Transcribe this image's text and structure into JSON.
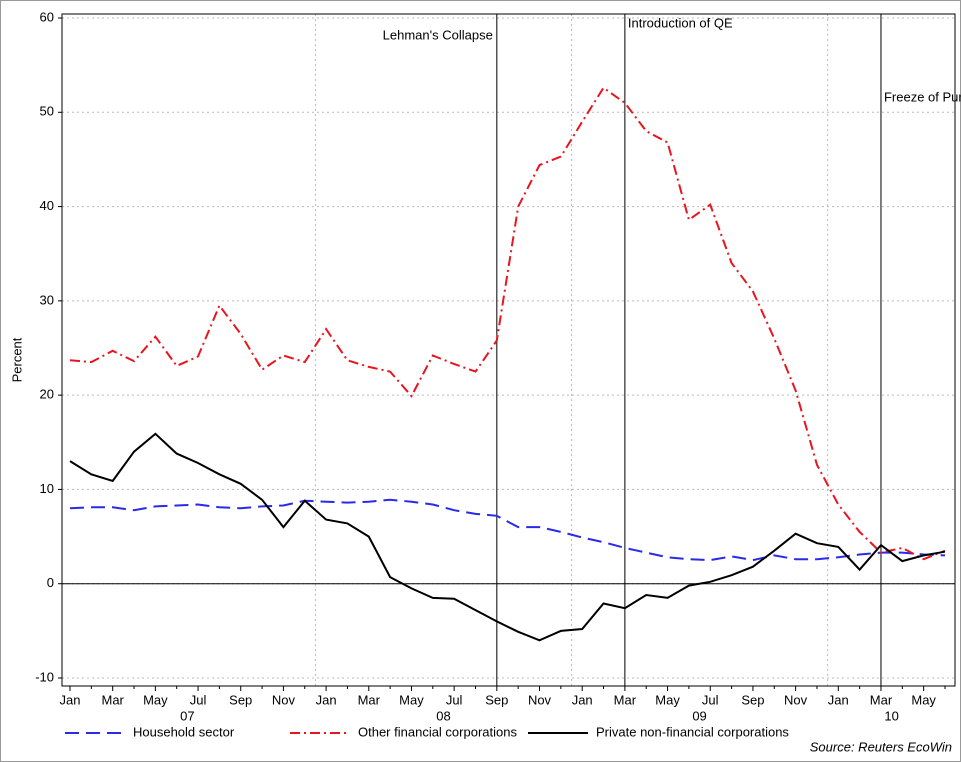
{
  "chart_data": {
    "type": "line",
    "y_label": "Percent",
    "source": "Source: Reuters EcoWin",
    "categories": [
      "Jan",
      null,
      "Mar",
      null,
      "May",
      null,
      "Jul",
      null,
      "Sep",
      null,
      "Nov",
      null,
      "Jan",
      null,
      "Mar",
      null,
      "May",
      null,
      "Jul",
      null,
      "Sep",
      null,
      "Nov",
      null,
      "Jan",
      null,
      "Mar",
      null,
      "May",
      null,
      "Jul",
      null,
      "Sep",
      null,
      "Nov",
      null,
      "Jan",
      null,
      "Mar",
      null,
      "May",
      null
    ],
    "year_labels": [
      "07",
      "08",
      "09",
      "10"
    ],
    "ylim": [
      -10,
      60
    ],
    "yticks": [
      -10,
      0,
      10,
      20,
      30,
      40,
      50,
      60
    ],
    "grid": true,
    "events": [
      {
        "label": "Lehman's Collapse",
        "index": 20
      },
      {
        "label": "Introduction of QE",
        "index": 26
      },
      {
        "label": "Freeze of Purchases",
        "index": 38
      }
    ],
    "series": [
      {
        "name": "Household sector",
        "color": "#2a2ae8",
        "dash": "dashed",
        "values": [
          8.0,
          8.1,
          8.1,
          7.8,
          8.2,
          8.3,
          8.4,
          8.1,
          8.0,
          8.2,
          8.3,
          8.8,
          8.7,
          8.6,
          8.7,
          8.9,
          8.7,
          8.4,
          7.8,
          7.4,
          7.2,
          6.0,
          6.0,
          5.5,
          4.9,
          4.4,
          3.8,
          3.3,
          2.8,
          2.6,
          2.5,
          2.9,
          2.5,
          3.0,
          2.6,
          2.6,
          2.8,
          3.1,
          3.3,
          3.3,
          3.1,
          3.0
        ]
      },
      {
        "name": "Other financial corporations",
        "color": "#e8141e",
        "dash": "dashdot",
        "values": [
          23.7,
          23.5,
          24.7,
          23.6,
          26.2,
          23.1,
          24.1,
          29.5,
          26.5,
          22.7,
          24.2,
          23.5,
          27.0,
          23.7,
          23.0,
          22.5,
          19.9,
          24.2,
          23.3,
          22.5,
          25.8,
          40.0,
          44.4,
          45.3,
          49.0,
          52.6,
          51.0,
          48.0,
          46.8,
          38.6,
          40.2,
          34.0,
          31.0,
          26.0,
          20.5,
          12.6,
          8.4,
          5.5,
          3.3,
          3.8,
          2.6,
          3.5
        ]
      },
      {
        "name": "Private non-financial corporations",
        "color": "#000000",
        "dash": "solid",
        "values": [
          13.0,
          11.6,
          10.9,
          14.0,
          15.9,
          13.8,
          12.8,
          11.6,
          10.6,
          8.9,
          6.0,
          8.8,
          6.8,
          6.4,
          5.0,
          0.7,
          -0.5,
          -1.5,
          -1.6,
          -2.8,
          -4.0,
          -5.1,
          -6.0,
          -5.0,
          -4.8,
          -2.1,
          -2.6,
          -1.2,
          -1.5,
          -0.2,
          0.2,
          0.9,
          1.8,
          3.5,
          5.3,
          4.3,
          3.9,
          1.5,
          4.1,
          2.4,
          3.0,
          3.4
        ]
      }
    ]
  }
}
